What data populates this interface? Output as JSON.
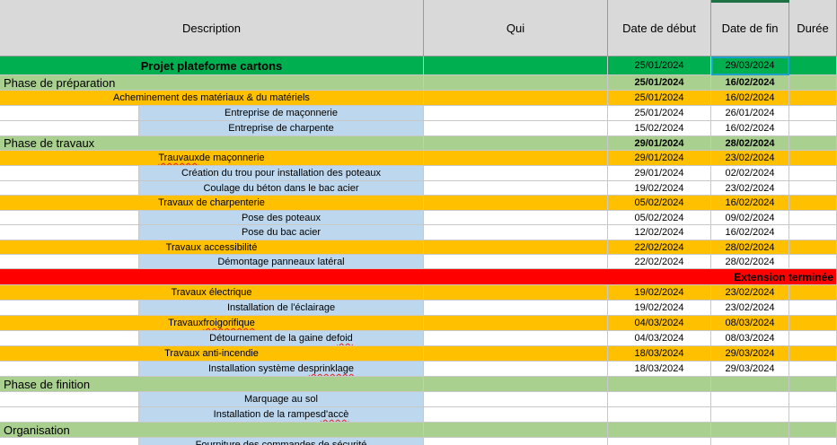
{
  "headers": {
    "description": "Description",
    "qui": "Qui",
    "start": "Date de début",
    "end": "Date de fin",
    "duration": "Durée"
  },
  "rows": [
    {
      "type": "title",
      "label": "Projet plateforme cartons",
      "start": "25/01/2024",
      "end": "29/03/2024"
    },
    {
      "type": "phase",
      "label": "Phase de préparation",
      "start": "25/01/2024",
      "end": "16/02/2024"
    },
    {
      "type": "task",
      "label": "Acheminement des matériaux & du matériels",
      "start": "25/01/2024",
      "end": "16/02/2024"
    },
    {
      "type": "sub",
      "label": "Entreprise de maçonnerie",
      "start": "25/01/2024",
      "end": "26/01/2024"
    },
    {
      "type": "sub",
      "label": "Entreprise de charpente",
      "start": "15/02/2024",
      "end": "16/02/2024"
    },
    {
      "type": "phase",
      "label": "Phase de travaux",
      "start": "29/01/2024",
      "end": "28/02/2024"
    },
    {
      "type": "task",
      "label_pre": "",
      "label_spell": "Trauvaux",
      "label_post": " de maçonnerie",
      "start": "29/01/2024",
      "end": "23/02/2024"
    },
    {
      "type": "sub",
      "label": "Création du trou pour installation des poteaux",
      "start": "29/01/2024",
      "end": "02/02/2024"
    },
    {
      "type": "sub",
      "label": "Coulage du béton  dans le bac acier",
      "start": "19/02/2024",
      "end": "23/02/2024"
    },
    {
      "type": "task",
      "label": "Travaux de charpenterie",
      "start": "05/02/2024",
      "end": "16/02/2024"
    },
    {
      "type": "sub",
      "label": "Pose des poteaux",
      "start": "05/02/2024",
      "end": "09/02/2024"
    },
    {
      "type": "sub",
      "label": "Pose du bac acier",
      "start": "12/02/2024",
      "end": "16/02/2024"
    },
    {
      "type": "task",
      "label": "Travaux accessibilité",
      "start": "22/02/2024",
      "end": "28/02/2024"
    },
    {
      "type": "sub",
      "label": "Démontage panneaux latéral",
      "start": "22/02/2024",
      "end": "28/02/2024"
    },
    {
      "type": "red",
      "label": "Extension terminée"
    },
    {
      "type": "task",
      "label": "Travaux électrique",
      "start": "19/02/2024",
      "end": "23/02/2024"
    },
    {
      "type": "sub",
      "label": "Installation de l'éclairage",
      "start": "19/02/2024",
      "end": "23/02/2024"
    },
    {
      "type": "task",
      "label_pre": "Travaux ",
      "label_spell": "froigorifique",
      "label_post": "",
      "start": "04/03/2024",
      "end": "08/03/2024"
    },
    {
      "type": "sub",
      "label_pre": "Détournement de la gaine de ",
      "label_spell": "foid",
      "label_post": "",
      "start": "04/03/2024",
      "end": "08/03/2024"
    },
    {
      "type": "task",
      "label": "Travaux anti-incendie",
      "start": "18/03/2024",
      "end": "29/03/2024"
    },
    {
      "type": "sub",
      "label_pre": "Installation système de ",
      "label_spell": "sprinklage",
      "label_post": "",
      "start": "18/03/2024",
      "end": "29/03/2024"
    },
    {
      "type": "phase",
      "label": "Phase de finition"
    },
    {
      "type": "sub",
      "label": "Marquage au sol"
    },
    {
      "type": "sub",
      "label_pre": "Installation de la rampes ",
      "label_spell": "d'accè",
      "label_post": ""
    },
    {
      "type": "phase",
      "label": "Organisation"
    },
    {
      "type": "sub",
      "label": "Fourniture des commandes de sécurité"
    }
  ]
}
